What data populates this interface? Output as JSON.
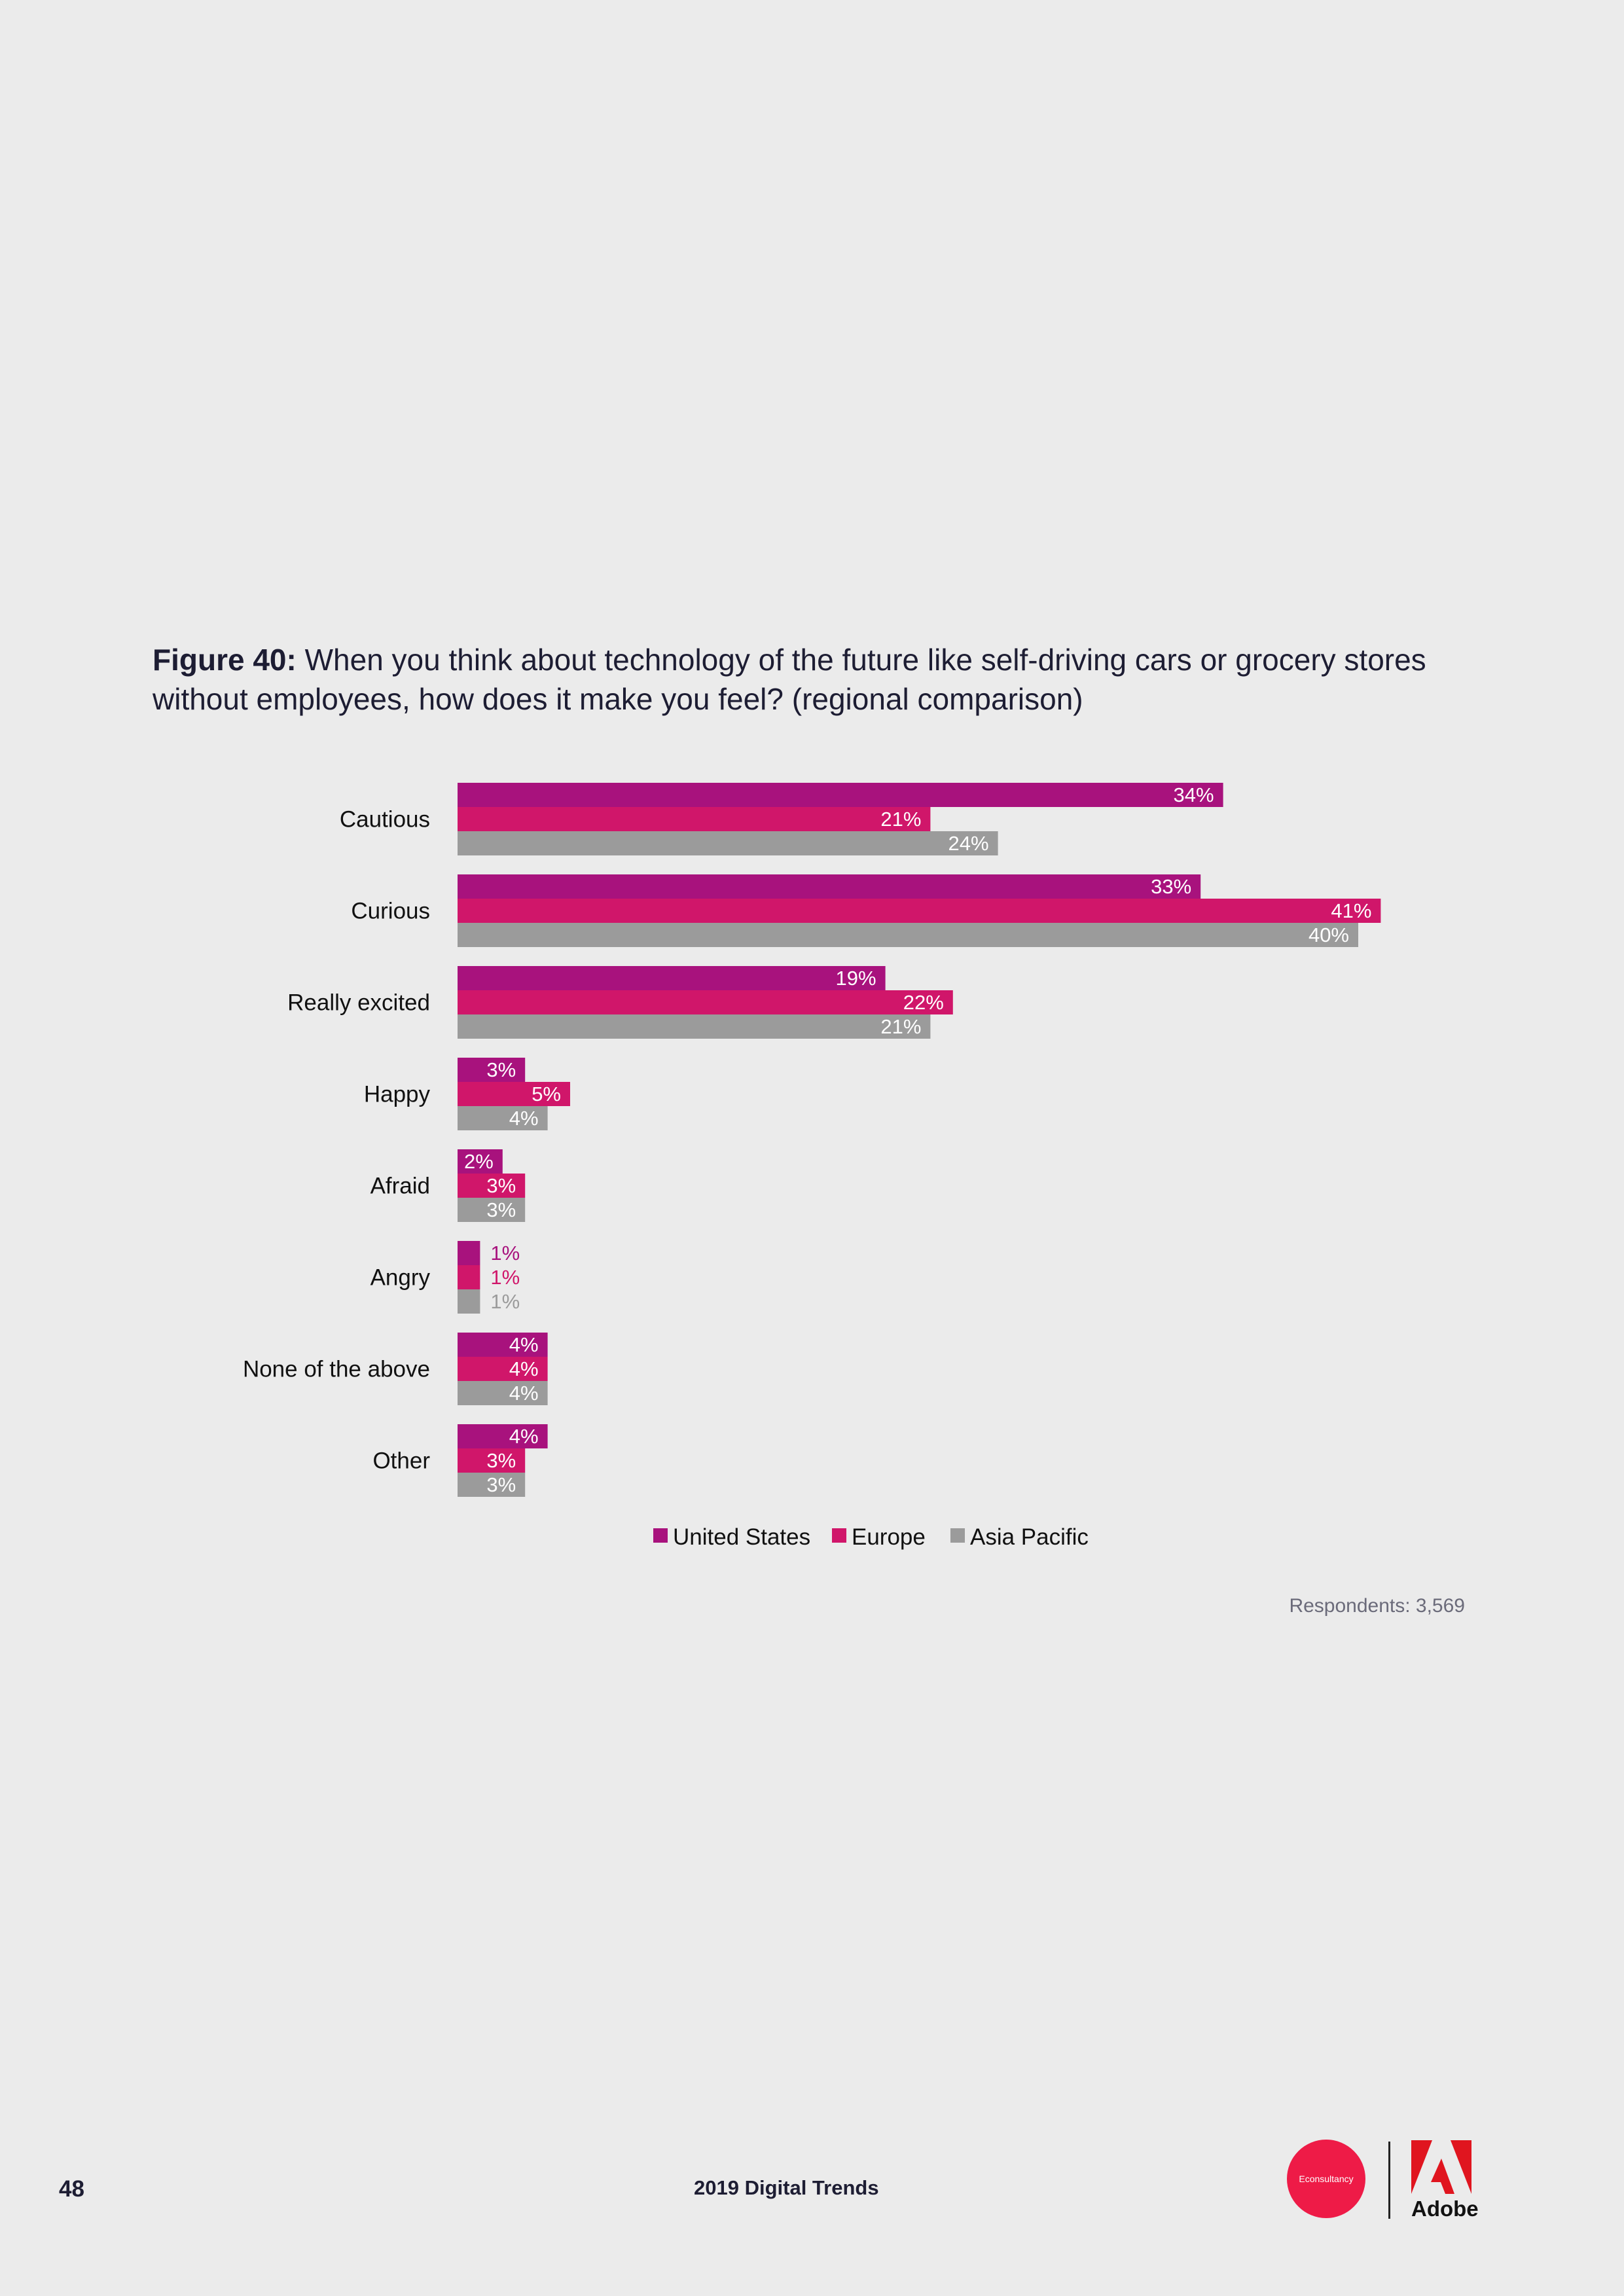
{
  "header": {
    "figure_label": "Figure 40:",
    "figure_text": " When you think about technology of the future like self-driving cars or grocery stores without employees, how does it make you feel? (regional comparison)"
  },
  "colors": {
    "us": "#a8127d",
    "europe": "#d0166a",
    "asia": "#9b9b9b",
    "background": "#ebebeb"
  },
  "chart_data": {
    "type": "bar",
    "orientation": "horizontal",
    "categories": [
      "Cautious",
      "Curious",
      "Really excited",
      "Happy",
      "Afraid",
      "Angry",
      "None of the above",
      "Other"
    ],
    "series": [
      {
        "name": "United States",
        "values": [
          34,
          33,
          19,
          3,
          2,
          1,
          4,
          4
        ]
      },
      {
        "name": "Europe",
        "values": [
          21,
          41,
          22,
          5,
          3,
          1,
          4,
          3
        ]
      },
      {
        "name": "Asia Pacific",
        "values": [
          24,
          40,
          21,
          4,
          3,
          1,
          4,
          3
        ]
      }
    ],
    "value_suffix": "%",
    "xlim": [
      0,
      42
    ],
    "grid": false,
    "legend_position": "bottom-center",
    "note": "Respondents: 3,569"
  },
  "footer": {
    "page_number": "48",
    "report_title": "2019 Digital Trends",
    "econsultancy_logo_text": "Econsultancy",
    "adobe_logo_text": "Adobe"
  }
}
